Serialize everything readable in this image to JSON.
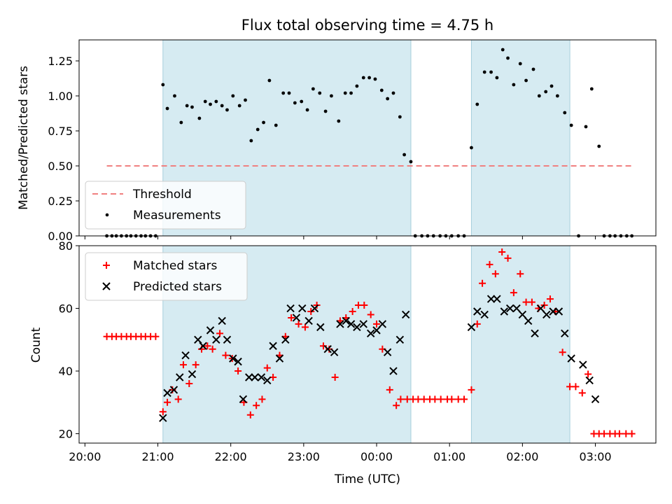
{
  "chart_data": [
    {
      "type": "scatter",
      "title": "Flux total observing time = 4.75 h",
      "xlabel": "",
      "ylabel": "Matched/Predicted stars",
      "ylim": [
        0,
        1.4
      ],
      "yticks": [
        "0.00",
        "0.25",
        "0.50",
        "0.75",
        "1.00",
        "1.25"
      ],
      "xlim_hours": [
        19.92,
        27.83
      ],
      "shaded_spans_hours": [
        [
          21.07,
          24.47
        ],
        [
          25.3,
          26.65
        ]
      ],
      "threshold": {
        "value": 0.5,
        "x_hours": [
          20.3,
          27.5
        ],
        "color": "#f08080"
      },
      "legend_position": "lower-left",
      "legend": [
        "Threshold",
        "Measurements"
      ],
      "series": [
        {
          "name": "Measurements",
          "color": "#000000",
          "x_hours": [
            20.3,
            20.37,
            20.43,
            20.5,
            20.57,
            20.63,
            20.7,
            20.77,
            20.83,
            20.9,
            20.97,
            21.07,
            21.13,
            21.23,
            21.32,
            21.4,
            21.47,
            21.57,
            21.65,
            21.72,
            21.8,
            21.88,
            21.95,
            22.03,
            22.12,
            22.2,
            22.28,
            22.37,
            22.45,
            22.53,
            22.62,
            22.72,
            22.8,
            22.88,
            22.97,
            23.05,
            23.13,
            23.22,
            23.3,
            23.38,
            23.48,
            23.57,
            23.65,
            23.73,
            23.82,
            23.9,
            23.98,
            24.07,
            24.15,
            24.23,
            24.32,
            24.38,
            24.47,
            24.53,
            24.62,
            24.7,
            24.78,
            24.87,
            24.95,
            25.03,
            25.12,
            25.2,
            25.3,
            25.38,
            25.48,
            25.57,
            25.65,
            25.73,
            25.8,
            25.88,
            25.97,
            26.05,
            26.15,
            26.23,
            26.32,
            26.4,
            26.48,
            26.58,
            26.67,
            26.77,
            26.87,
            26.95,
            27.05,
            27.12,
            27.2,
            27.27,
            27.35,
            27.43,
            27.5
          ],
          "y": [
            0,
            0,
            0,
            0,
            0,
            0,
            0,
            0,
            0,
            0,
            0,
            1.08,
            0.91,
            1.0,
            0.81,
            0.93,
            0.92,
            0.84,
            0.96,
            0.94,
            0.96,
            0.93,
            0.9,
            1.0,
            0.93,
            0.97,
            0.68,
            0.76,
            0.81,
            1.11,
            0.79,
            1.02,
            1.02,
            0.95,
            0.96,
            0.9,
            1.05,
            1.02,
            0.89,
            1.0,
            0.82,
            1.02,
            1.02,
            1.07,
            1.13,
            1.13,
            1.12,
            1.04,
            0.98,
            1.02,
            0.85,
            0.58,
            0.53,
            0,
            0,
            0,
            0,
            0,
            0,
            0,
            0,
            0,
            0.63,
            0.94,
            1.17,
            1.17,
            1.13,
            1.33,
            1.27,
            1.08,
            1.23,
            1.11,
            1.19,
            1.0,
            1.03,
            1.07,
            1.0,
            0.88,
            0.79,
            0,
            0.78,
            1.05,
            0.64,
            0,
            0,
            0,
            0,
            0,
            0
          ]
        }
      ]
    },
    {
      "type": "scatter",
      "xlabel": "Time (UTC)",
      "ylabel": "Count",
      "ylim": [
        17,
        80
      ],
      "yticks": [
        "20",
        "40",
        "60",
        "80"
      ],
      "xlim_hours": [
        19.92,
        27.83
      ],
      "xticks": [
        "20:00",
        "21:00",
        "22:00",
        "23:00",
        "00:00",
        "01:00",
        "02:00",
        "03:00"
      ],
      "shaded_spans_hours": [
        [
          21.07,
          24.47
        ],
        [
          25.3,
          26.65
        ]
      ],
      "legend_position": "upper-left",
      "legend": [
        "Matched stars",
        "Predicted stars"
      ],
      "series": [
        {
          "name": "Matched stars",
          "marker": "plus",
          "color": "#ff0000",
          "x_hours": [
            20.3,
            20.37,
            20.43,
            20.5,
            20.57,
            20.63,
            20.7,
            20.77,
            20.83,
            20.9,
            20.97,
            21.07,
            21.13,
            21.2,
            21.28,
            21.35,
            21.43,
            21.52,
            21.6,
            21.68,
            21.75,
            21.85,
            21.93,
            22.02,
            22.1,
            22.18,
            22.27,
            22.35,
            22.43,
            22.5,
            22.58,
            22.67,
            22.75,
            22.83,
            22.93,
            23.02,
            23.1,
            23.18,
            23.27,
            23.35,
            23.43,
            23.5,
            23.58,
            23.67,
            23.75,
            23.83,
            23.92,
            24.0,
            24.08,
            24.18,
            24.27,
            24.33,
            24.42,
            24.5,
            24.57,
            24.65,
            24.73,
            24.8,
            24.88,
            24.97,
            25.03,
            25.12,
            25.2,
            25.3,
            25.38,
            25.45,
            25.55,
            25.63,
            25.72,
            25.8,
            25.88,
            25.97,
            26.05,
            26.13,
            26.22,
            26.3,
            26.38,
            26.45,
            26.55,
            26.65,
            26.73,
            26.82,
            26.9,
            26.98,
            27.05,
            27.12,
            27.2,
            27.27,
            27.33,
            27.42,
            27.5
          ],
          "y": [
            51,
            51,
            51,
            51,
            51,
            51,
            51,
            51,
            51,
            51,
            51,
            27,
            30,
            34,
            31,
            42,
            36,
            42,
            47,
            48,
            47,
            52,
            45,
            44,
            40,
            30,
            26,
            29,
            31,
            41,
            38,
            45,
            51,
            57,
            55,
            54,
            59,
            61,
            48,
            47,
            38,
            56,
            57,
            59,
            61,
            61,
            58,
            55,
            47,
            34,
            29,
            31,
            31,
            31,
            31,
            31,
            31,
            31,
            31,
            31,
            31,
            31,
            31,
            34,
            55,
            68,
            74,
            71,
            78,
            76,
            65,
            71,
            62,
            62,
            60,
            61,
            63,
            59,
            46,
            35,
            35,
            33,
            39,
            20,
            20,
            20,
            20,
            20,
            20,
            20,
            20
          ]
        },
        {
          "name": "Predicted stars",
          "marker": "cross",
          "color": "#000000",
          "x_hours": [
            21.07,
            21.13,
            21.22,
            21.3,
            21.38,
            21.47,
            21.55,
            21.62,
            21.72,
            21.8,
            21.88,
            21.95,
            22.03,
            22.1,
            22.17,
            22.25,
            22.33,
            22.42,
            22.5,
            22.58,
            22.67,
            22.75,
            22.82,
            22.9,
            22.98,
            23.07,
            23.15,
            23.23,
            23.33,
            23.42,
            23.5,
            23.58,
            23.65,
            23.73,
            23.82,
            23.92,
            24.0,
            24.08,
            24.15,
            24.23,
            24.32,
            24.4,
            24.48,
            25.3,
            25.38,
            25.48,
            25.57,
            25.65,
            25.75,
            25.83,
            25.92,
            26.0,
            26.08,
            26.17,
            26.25,
            26.33,
            26.42,
            26.5,
            26.58,
            26.67,
            26.83,
            26.92,
            27.0
          ],
          "y": [
            25,
            33,
            34,
            38,
            45,
            39,
            50,
            48,
            53,
            50,
            56,
            50,
            44,
            43,
            31,
            38,
            38,
            38,
            37,
            48,
            44,
            50,
            60,
            57,
            60,
            56,
            60,
            54,
            47,
            46,
            55,
            56,
            55,
            54,
            55,
            52,
            53,
            55,
            46,
            40,
            50,
            58,
            null,
            54,
            59,
            58,
            63,
            63,
            59,
            60,
            60,
            58,
            56,
            52,
            60,
            58,
            59,
            59,
            52,
            44,
            42,
            37,
            31
          ]
        }
      ]
    }
  ]
}
